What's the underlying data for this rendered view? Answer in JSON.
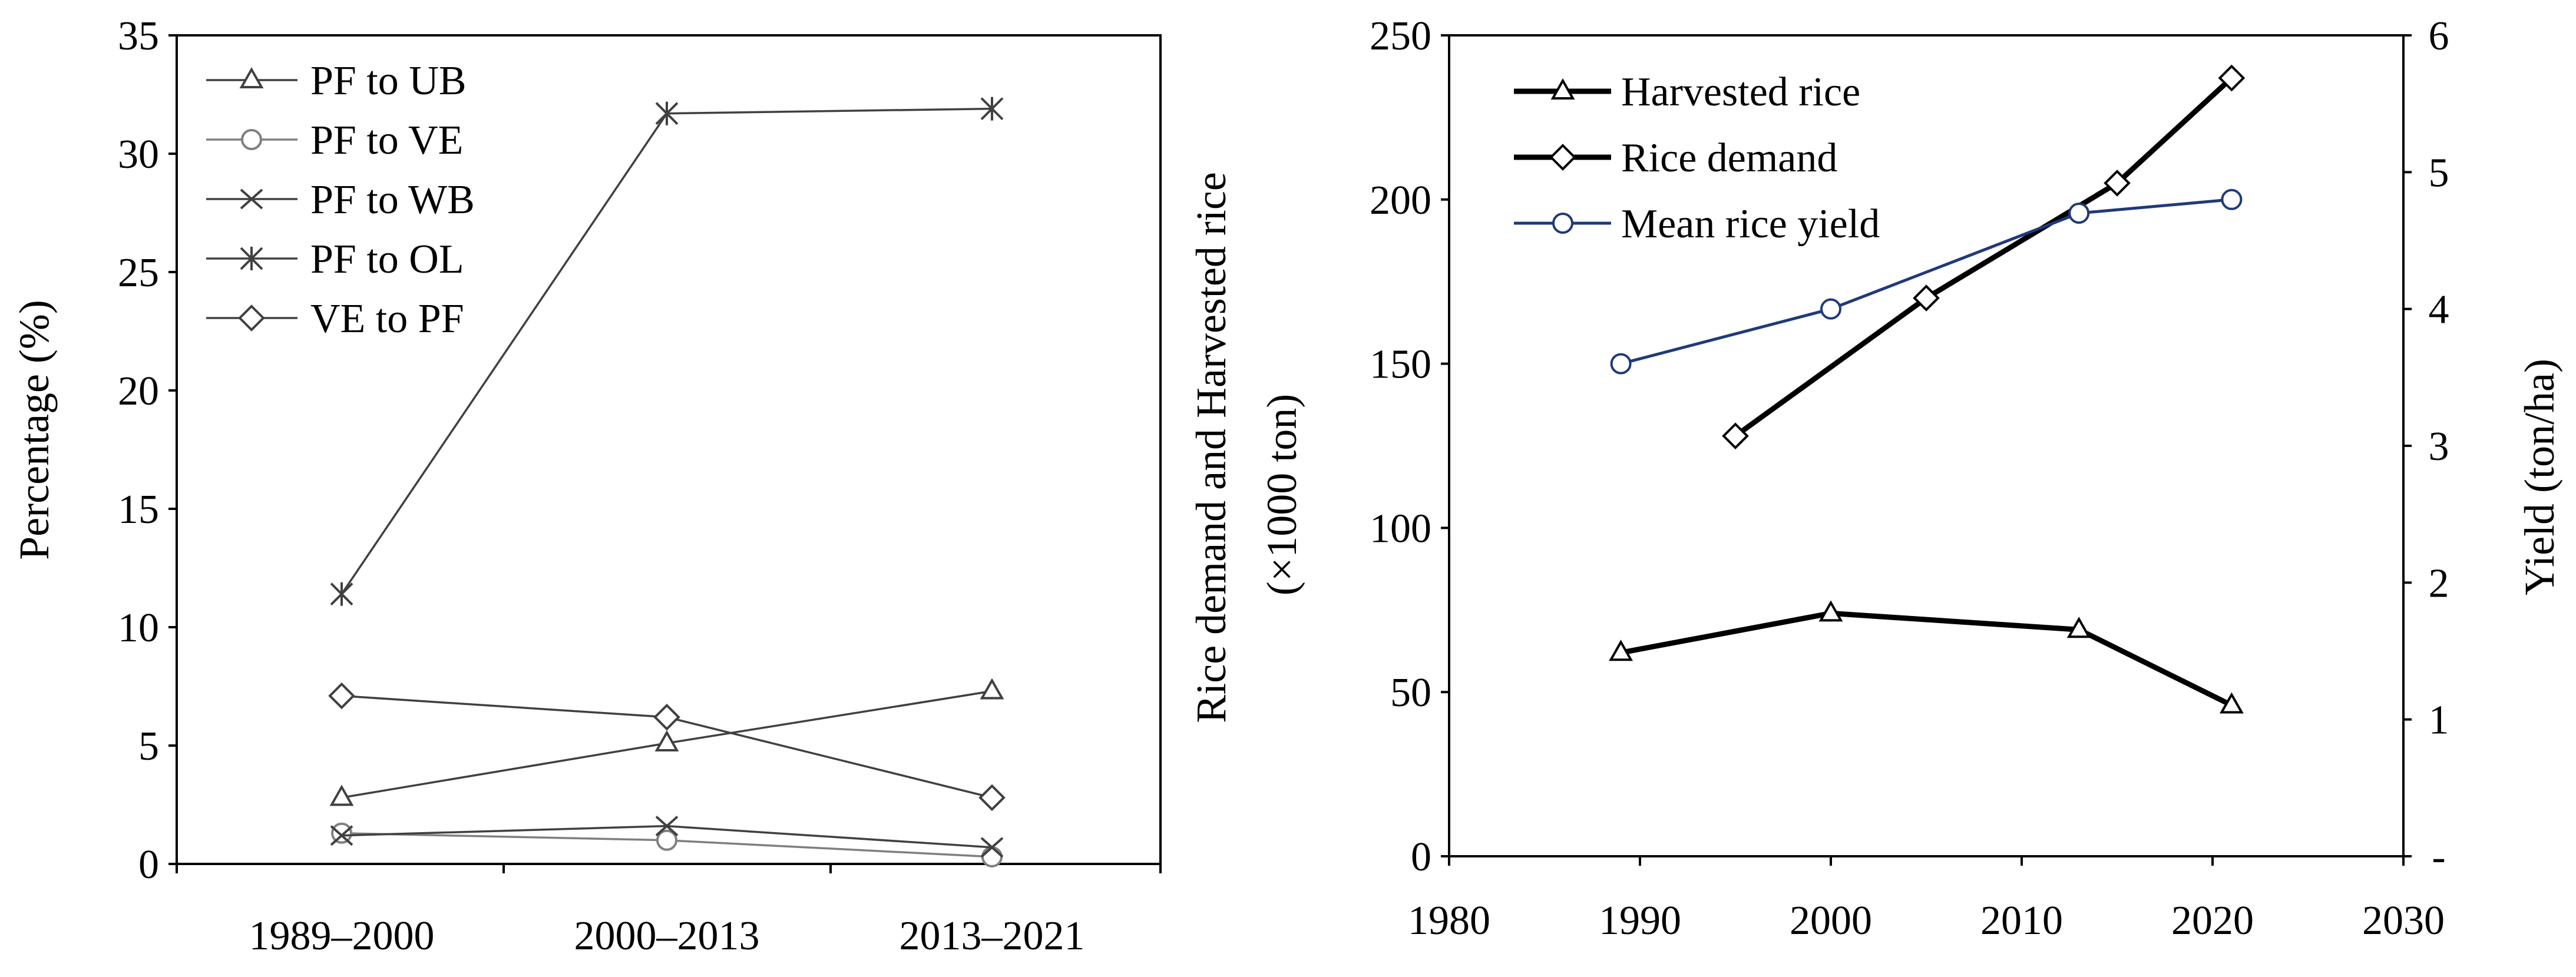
{
  "chart_data": [
    {
      "type": "line",
      "title": "",
      "xlabel": "",
      "ylabel": "Percentage (%)",
      "categories": [
        "1989–2000",
        "2000–2013",
        "2013–2021"
      ],
      "ylim": [
        0,
        35
      ],
      "yticks": [
        0,
        5,
        10,
        15,
        20,
        25,
        30,
        35
      ],
      "legend_position": "top-left",
      "series": [
        {
          "name": "PF to UB",
          "marker": "triangle",
          "color": "#404040",
          "values": [
            2.8,
            5.1,
            7.3
          ]
        },
        {
          "name": "PF to VE",
          "marker": "circle",
          "color": "#7f7f7f",
          "values": [
            1.3,
            1.0,
            0.3
          ]
        },
        {
          "name": "PF to WB",
          "marker": "x",
          "color": "#404040",
          "values": [
            1.2,
            1.6,
            0.7
          ]
        },
        {
          "name": "PF to OL",
          "marker": "asterisk",
          "color": "#404040",
          "values": [
            11.4,
            31.7,
            31.9
          ]
        },
        {
          "name": "VE to PF",
          "marker": "diamond",
          "color": "#404040",
          "values": [
            7.1,
            6.2,
            2.8
          ]
        }
      ]
    },
    {
      "type": "line",
      "title": "",
      "xlabel": "",
      "ylabel_line1": "Rice demand and Harvested rice",
      "ylabel_line2": "(×1000 ton)",
      "y2label": "Yield (ton/ha)",
      "xlim": [
        1980,
        2030
      ],
      "xticks": [
        1980,
        1990,
        2000,
        2010,
        2020,
        2030
      ],
      "ylim": [
        0,
        250
      ],
      "yticks": [
        0,
        50,
        100,
        150,
        200,
        250
      ],
      "y2lim": [
        0,
        6
      ],
      "y2ticks": [
        "-",
        "1",
        "2",
        "3",
        "4",
        "5",
        "6"
      ],
      "legend_position": "top-left",
      "series": [
        {
          "name": "Harvested rice",
          "marker": "triangle",
          "color": "#000000",
          "axis": "left",
          "x": [
            1989,
            2000,
            2013,
            2021
          ],
          "values": [
            62,
            74,
            69,
            46
          ]
        },
        {
          "name": "Rice demand",
          "marker": "diamond",
          "color": "#000000",
          "axis": "left",
          "x": [
            1995,
            2005,
            2015,
            2021
          ],
          "values": [
            128,
            170,
            205,
            237
          ]
        },
        {
          "name": "Mean rice yield",
          "marker": "circle",
          "color": "#1f3a7a",
          "axis": "right",
          "x": [
            1989,
            2000,
            2013,
            2021
          ],
          "values": [
            3.6,
            4.0,
            4.7,
            4.8
          ]
        }
      ]
    }
  ]
}
